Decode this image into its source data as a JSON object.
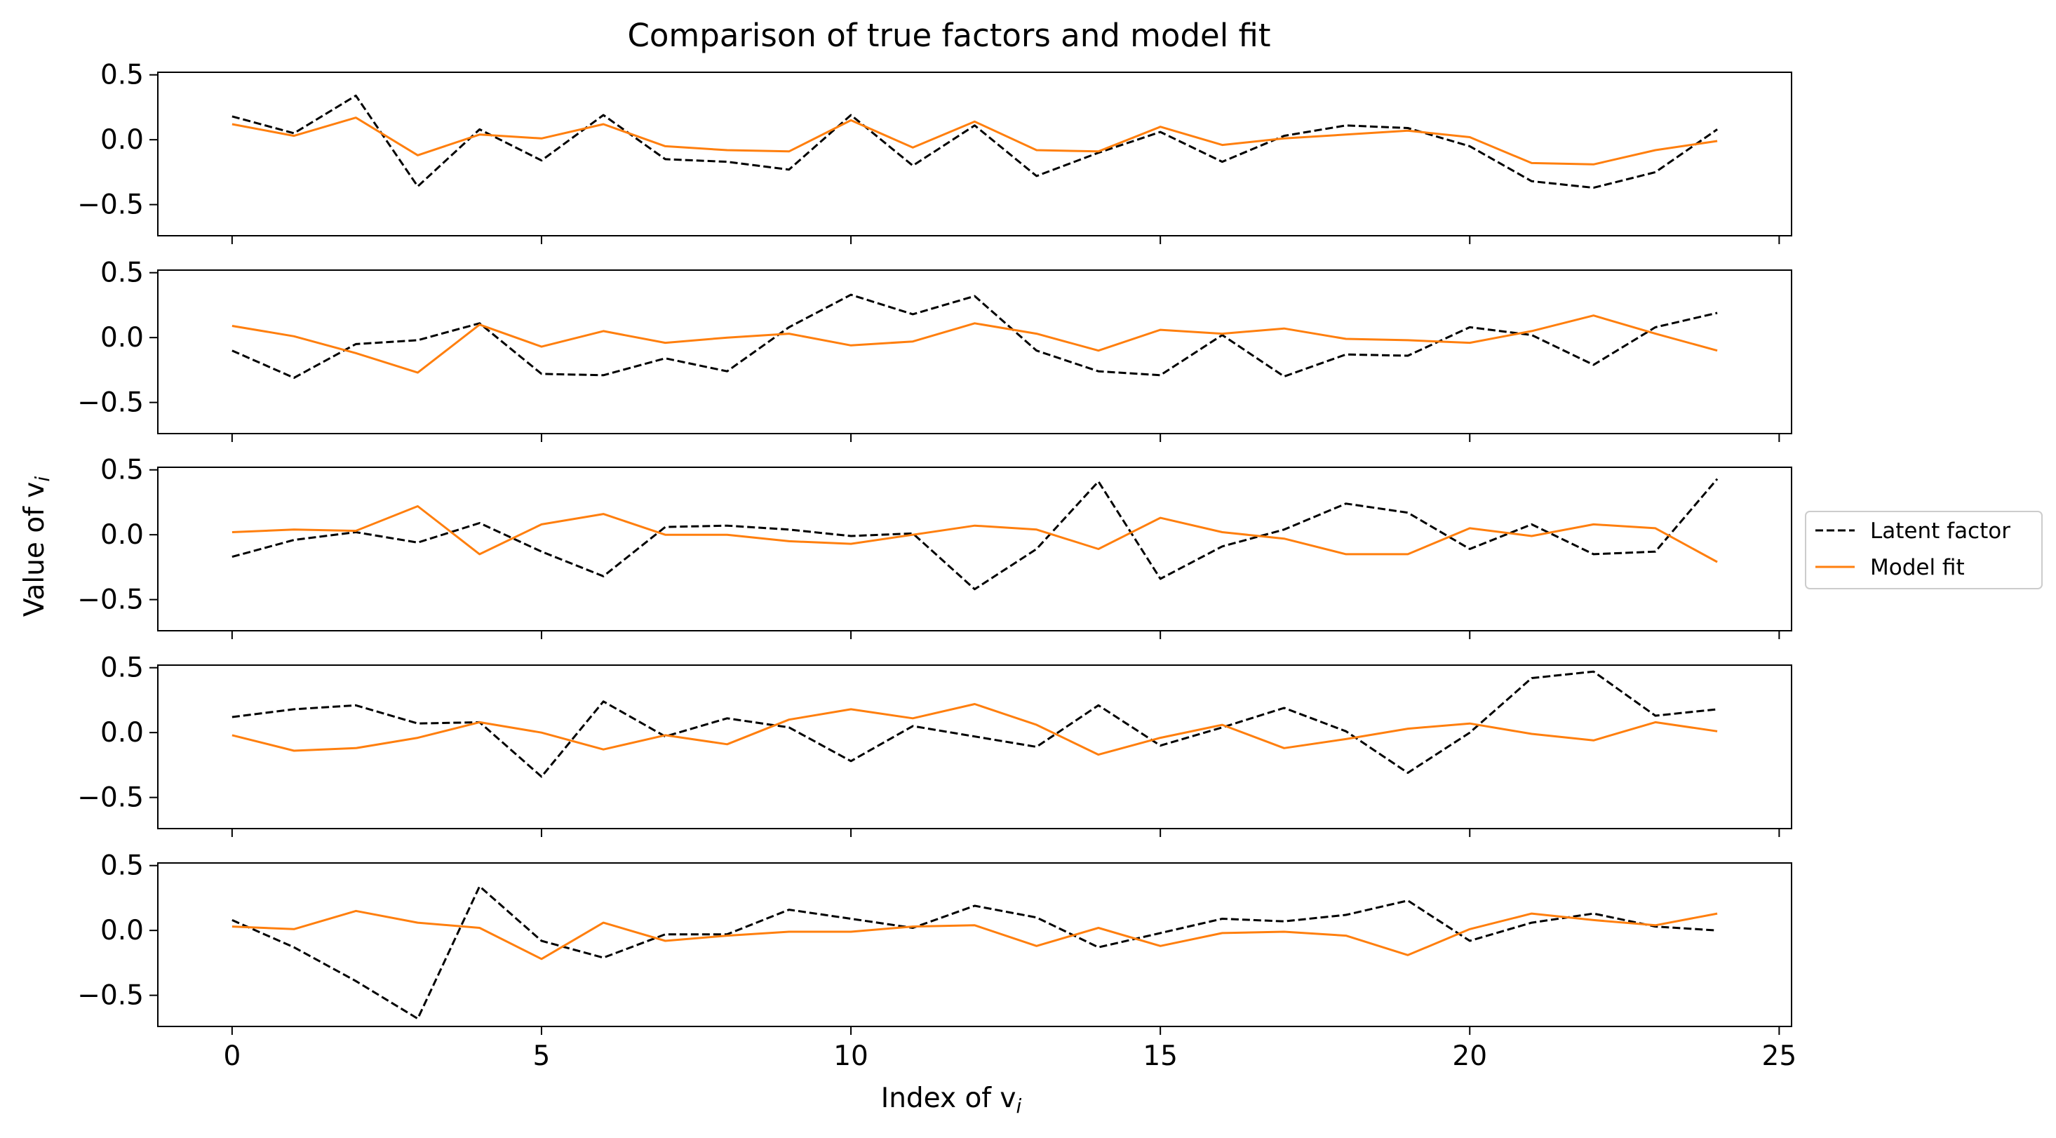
{
  "chart_data": {
    "type": "line",
    "title": "Comparison of true factors and model fit",
    "xlabel": "Index of v",
    "xlabel_sub": "i",
    "ylabel": "Value of v",
    "ylabel_sub": "i",
    "xlim": [
      -1.2,
      25.2
    ],
    "ylim": [
      -0.74,
      0.52
    ],
    "xticks": [
      0,
      5,
      10,
      15,
      20,
      25
    ],
    "yticks": [
      0.5,
      0.0,
      -0.5
    ],
    "ytick_labels": [
      "0.5",
      "0.0",
      "−0.5"
    ],
    "legend": {
      "position": "right",
      "entries": [
        {
          "label": "Latent factor",
          "color": "#000000",
          "style": "dashed"
        },
        {
          "label": "Model fit",
          "color": "#ff7f0e",
          "style": "solid"
        }
      ]
    },
    "x": [
      0,
      1,
      2,
      3,
      4,
      5,
      6,
      7,
      8,
      9,
      10,
      11,
      12,
      13,
      14,
      15,
      16,
      17,
      18,
      19,
      20,
      21,
      22,
      23,
      24
    ],
    "panels": [
      {
        "latent": [
          0.18,
          0.05,
          0.34,
          -0.36,
          0.08,
          -0.16,
          0.19,
          -0.15,
          -0.17,
          -0.23,
          0.19,
          -0.2,
          0.11,
          -0.28,
          -0.1,
          0.06,
          -0.17,
          0.03,
          0.11,
          0.09,
          -0.05,
          -0.32,
          -0.37,
          -0.25,
          0.08
        ],
        "fit": [
          0.12,
          0.03,
          0.17,
          -0.12,
          0.04,
          0.01,
          0.12,
          -0.05,
          -0.08,
          -0.09,
          0.15,
          -0.06,
          0.14,
          -0.08,
          -0.09,
          0.1,
          -0.04,
          0.01,
          0.04,
          0.07,
          0.02,
          -0.18,
          -0.19,
          -0.08,
          -0.01
        ]
      },
      {
        "latent": [
          -0.1,
          -0.31,
          -0.05,
          -0.02,
          0.11,
          -0.28,
          -0.29,
          -0.16,
          -0.26,
          0.08,
          0.33,
          0.18,
          0.32,
          -0.1,
          -0.26,
          -0.29,
          0.02,
          -0.3,
          -0.13,
          -0.14,
          0.08,
          0.02,
          -0.21,
          0.08,
          0.19
        ],
        "fit": [
          0.09,
          0.01,
          -0.12,
          -0.27,
          0.1,
          -0.07,
          0.05,
          -0.04,
          0.0,
          0.03,
          -0.06,
          -0.03,
          0.11,
          0.03,
          -0.1,
          0.06,
          0.03,
          0.07,
          -0.01,
          -0.02,
          -0.04,
          0.05,
          0.17,
          0.03,
          -0.1
        ]
      },
      {
        "latent": [
          -0.17,
          -0.04,
          0.02,
          -0.06,
          0.09,
          -0.13,
          -0.32,
          0.06,
          0.07,
          0.04,
          -0.01,
          0.01,
          -0.42,
          -0.11,
          0.41,
          -0.34,
          -0.09,
          0.04,
          0.24,
          0.17,
          -0.11,
          0.08,
          -0.15,
          -0.13,
          0.43
        ],
        "fit": [
          0.02,
          0.04,
          0.03,
          0.22,
          -0.15,
          0.08,
          0.16,
          0.0,
          0.0,
          -0.05,
          -0.07,
          0.0,
          0.07,
          0.04,
          -0.11,
          0.13,
          0.02,
          -0.03,
          -0.15,
          -0.15,
          0.05,
          -0.01,
          0.08,
          0.05,
          -0.21
        ]
      },
      {
        "latent": [
          0.12,
          0.18,
          0.21,
          0.07,
          0.08,
          -0.34,
          0.24,
          -0.03,
          0.11,
          0.04,
          -0.22,
          0.05,
          -0.03,
          -0.11,
          0.21,
          -0.1,
          0.04,
          0.19,
          0.01,
          -0.31,
          0.0,
          0.42,
          0.47,
          0.13,
          0.18
        ],
        "fit": [
          -0.02,
          -0.14,
          -0.12,
          -0.04,
          0.08,
          0.0,
          -0.13,
          -0.02,
          -0.09,
          0.1,
          0.18,
          0.11,
          0.22,
          0.06,
          -0.17,
          -0.04,
          0.06,
          -0.12,
          -0.05,
          0.03,
          0.07,
          -0.01,
          -0.06,
          0.08,
          0.01
        ]
      },
      {
        "latent": [
          0.08,
          -0.13,
          -0.39,
          -0.68,
          0.34,
          -0.08,
          -0.21,
          -0.03,
          -0.03,
          0.16,
          0.09,
          0.02,
          0.19,
          0.1,
          -0.13,
          -0.02,
          0.09,
          0.07,
          0.12,
          0.23,
          -0.08,
          0.06,
          0.13,
          0.03,
          0.0
        ],
        "fit": [
          0.03,
          0.01,
          0.15,
          0.06,
          0.02,
          -0.22,
          0.06,
          -0.08,
          -0.04,
          -0.01,
          -0.01,
          0.03,
          0.04,
          -0.12,
          0.02,
          -0.12,
          -0.02,
          -0.01,
          -0.04,
          -0.19,
          0.01,
          0.13,
          0.08,
          0.04,
          0.13
        ]
      }
    ]
  }
}
